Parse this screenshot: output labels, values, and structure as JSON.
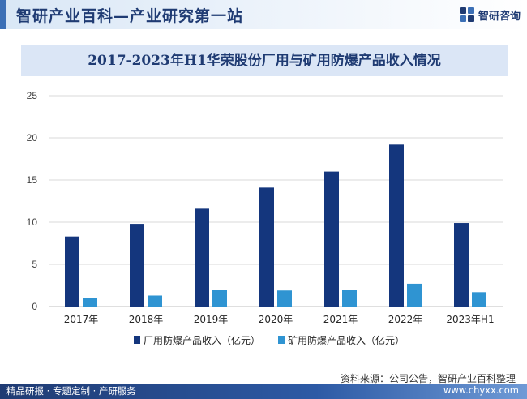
{
  "header": {
    "site_title": "智研产业百科—产业研究第一站",
    "brand_name": "智研咨询"
  },
  "footer": {
    "source": "资料来源：公司公告，智研产业百科整理",
    "tagline": "精品研报 · 专题定制 · 产研服务",
    "url": "www.chyxx.com"
  },
  "colors": {
    "series1": "#14367d",
    "series2": "#2f94d2",
    "title_bg": "#dbe6f6",
    "grid": "#d9d9d9"
  },
  "chart_data": {
    "type": "bar",
    "title": "2017-2023年H1华荣股份厂用与矿用防爆产品收入情况",
    "categories": [
      "2017年",
      "2018年",
      "2019年",
      "2020年",
      "2021年",
      "2022年",
      "2023年H1"
    ],
    "series": [
      {
        "name": "厂用防爆产品收入（亿元）",
        "values": [
          8.3,
          9.8,
          11.6,
          14.1,
          16.0,
          19.2,
          9.9
        ]
      },
      {
        "name": "矿用防爆产品收入（亿元）",
        "values": [
          1.0,
          1.3,
          2.0,
          1.9,
          2.0,
          2.7,
          1.7
        ]
      }
    ],
    "y_ticks": [
      "0",
      "5",
      "10",
      "15",
      "20",
      "25"
    ],
    "ylim": [
      0,
      25
    ],
    "grid": true,
    "legend_position": "bottom"
  }
}
